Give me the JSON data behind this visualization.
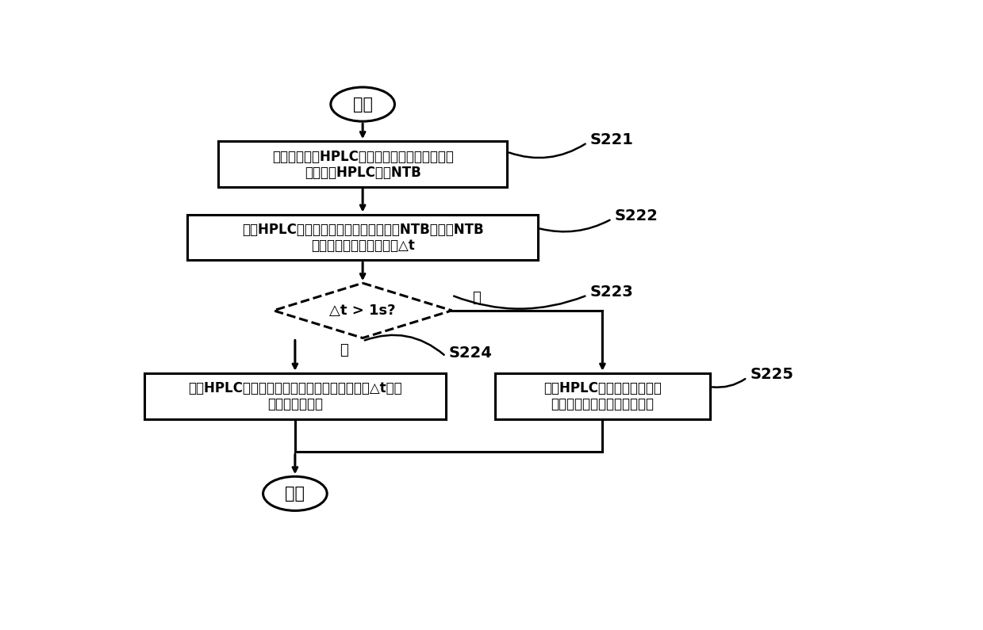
{
  "bg_color": "#ffffff",
  "line_color": "#000000",
  "text_color": "#000000",
  "start_label": "开始",
  "end_label": "结束",
  "box1_line1": "智能终端通过HPLC电力线高速载波下发终端时",
  "box1_line2": "间和路由HPLC模块NTB",
  "box2_line1": "表端HPLC通信模块将接收到的路由模块NTB与自身NTB",
  "box2_line2": "进行差値计算出传输时延△t",
  "diamond_text": "△t > 1s?",
  "box3_line1": "表端HPLC通信模块对接收到智能终端的时间做△t补偿",
  "box3_line2": "后调整自身时间",
  "box4_line1": "表端HPLC通信模块对接收到",
  "box4_line2": "智能终端的时间调整自身时间",
  "label_s221": "S221",
  "label_s222": "S222",
  "label_s223": "S223",
  "label_s224": "S224",
  "label_s225": "S225",
  "yes_label": "是",
  "no_label": "否"
}
